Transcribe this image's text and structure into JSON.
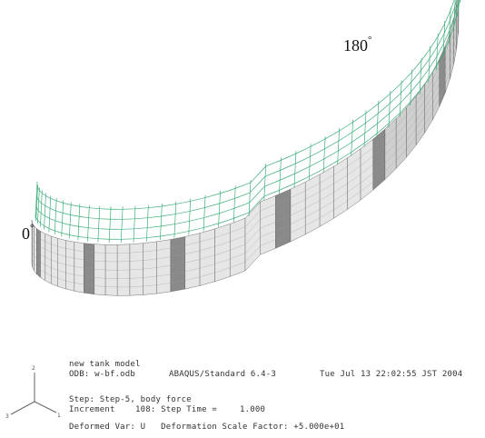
{
  "labels": {
    "angle_180": "180",
    "angle_0": "0",
    "degree_symbol": "°"
  },
  "info": {
    "model_title": "new tank model",
    "odb": "ODB: w-bf.odb",
    "solver": "ABAQUS/Standard 6.4-3",
    "datetime": "Tue Jul 13 22:02:55 JST 2004",
    "step": "Step: Step-5, body force",
    "increment": "Increment    108: Step Time =",
    "step_time": "1.000",
    "deformed_var": "Deformed Var: U   Deformation Scale Factor: +5.000e+01"
  },
  "triad": {
    "axis_1": "1",
    "axis_2": "2",
    "axis_3": "3"
  },
  "colors": {
    "mesh_green": "#3fae7a",
    "shell_light": "#e6e6e6",
    "shell_dark": "#8a8a8a",
    "edge": "#555555"
  }
}
